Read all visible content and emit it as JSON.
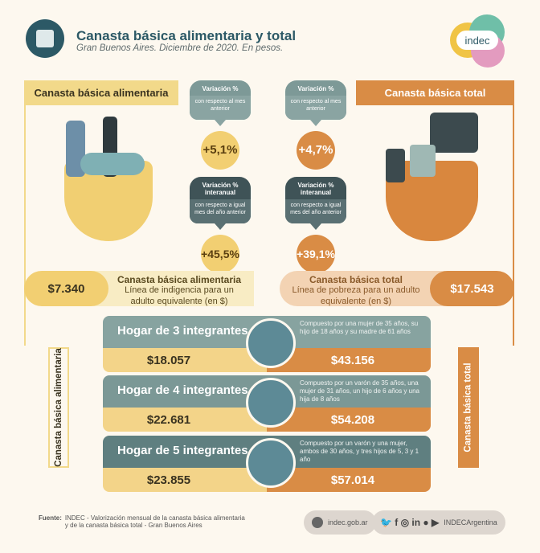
{
  "header": {
    "title": "Canasta básica alimentaria y total",
    "subtitle": "Gran Buenos Aires. Diciembre de 2020. En pesos.",
    "logo": "indec",
    "icon": "puzzle-icon"
  },
  "colors": {
    "teal": "#2c5966",
    "yellow": "#f2d98a",
    "orange": "#d98c45",
    "background": "#fdf8ef"
  },
  "cba": {
    "banner": "Canasta básica alimentaria",
    "monthly_label": "Variación %",
    "monthly_sub": "con respecto al mes anterior",
    "monthly": "+5,1%",
    "yoy_label": "Variación % interanual",
    "yoy_sub": "con respecto a igual mes del año anterior",
    "yoy": "+45,5%",
    "value": "$7.340",
    "line_title": "Canasta básica alimentaria",
    "line_desc": "Línea de indigencia para un adulto equivalente (en $)",
    "side": "Canasta básica alimentaria"
  },
  "cbt": {
    "banner": "Canasta básica total",
    "monthly_label": "Variación %",
    "monthly_sub": "con respecto al mes anterior",
    "monthly": "+4,7%",
    "yoy_label": "Variación % interanual",
    "yoy_sub": "con respecto a igual mes del año anterior",
    "yoy": "+39,1%",
    "value": "$17.543",
    "line_title": "Canasta básica total",
    "line_desc": "Línea de pobreza para un adulto equivalente (en $)",
    "side": "Canasta básica total"
  },
  "households": [
    {
      "title": "Hogar de 3 integrantes",
      "desc": "Compuesto por una mujer de 35 años, su hijo de 18 años y su madre de 61 años",
      "cba": "$18.057",
      "cbt": "$43.156"
    },
    {
      "title": "Hogar de 4 integrantes",
      "desc": "Compuesto por un varón de 35 años, una mujer de 31 años, un hijo de 6 años y una hija de 8 años",
      "cba": "$22.681",
      "cbt": "$54.208"
    },
    {
      "title": "Hogar de 5 integrantes",
      "desc": "Compuesto por un varón y una mujer, ambos de 30 años, y tres hijos de 5, 3 y 1 año",
      "cba": "$23.855",
      "cbt": "$57.014"
    }
  ],
  "footer": {
    "source_label": "Fuente:",
    "source_text": "INDEC - Valorización mensual de la canasta básica alimentaria y de la canasta básica total - Gran Buenos Aires",
    "web": "indec.gob.ar",
    "social": "INDECArgentina"
  }
}
